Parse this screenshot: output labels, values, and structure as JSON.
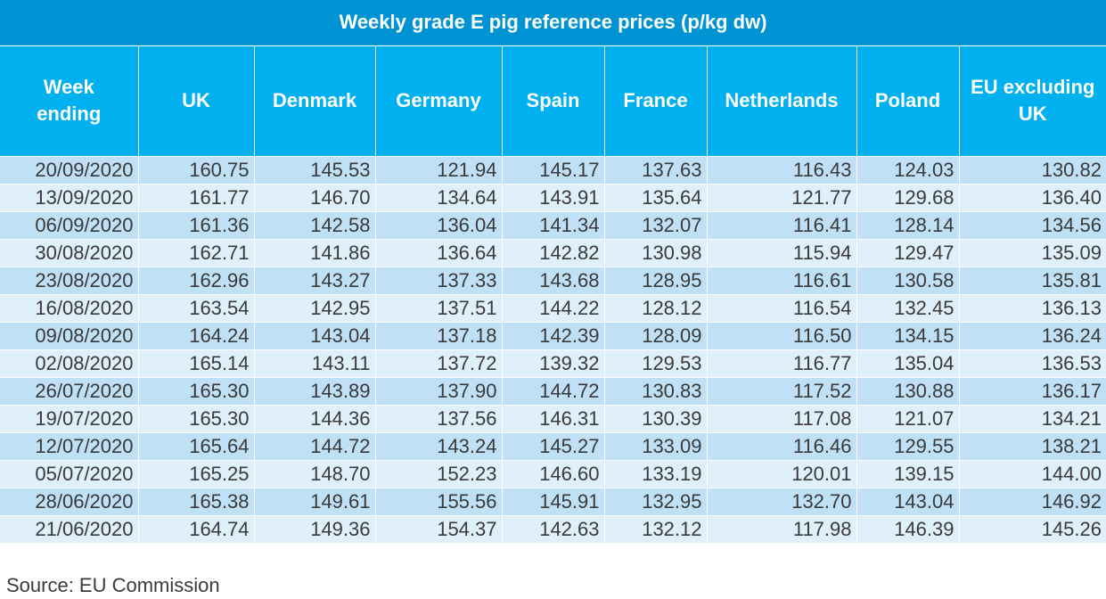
{
  "table": {
    "title": "Weekly grade E pig reference prices (p/kg dw)",
    "headers": [
      [
        "Week",
        "ending"
      ],
      [
        "UK"
      ],
      [
        "Denmark"
      ],
      [
        "Germany"
      ],
      [
        "Spain"
      ],
      [
        "France"
      ],
      [
        "Netherlands"
      ],
      [
        "Poland"
      ],
      [
        "EU excluding",
        "UK"
      ]
    ],
    "rows": [
      [
        "20/09/2020",
        "160.75",
        "145.53",
        "121.94",
        "145.17",
        "137.63",
        "116.43",
        "124.03",
        "130.82"
      ],
      [
        "13/09/2020",
        "161.77",
        "146.70",
        "134.64",
        "143.91",
        "135.64",
        "121.77",
        "129.68",
        "136.40"
      ],
      [
        "06/09/2020",
        "161.36",
        "142.58",
        "136.04",
        "141.34",
        "132.07",
        "116.41",
        "128.14",
        "134.56"
      ],
      [
        "30/08/2020",
        "162.71",
        "141.86",
        "136.64",
        "142.82",
        "130.98",
        "115.94",
        "129.47",
        "135.09"
      ],
      [
        "23/08/2020",
        "162.96",
        "143.27",
        "137.33",
        "143.68",
        "128.95",
        "116.61",
        "130.58",
        "135.81"
      ],
      [
        "16/08/2020",
        "163.54",
        "142.95",
        "137.51",
        "144.22",
        "128.12",
        "116.54",
        "132.45",
        "136.13"
      ],
      [
        "09/08/2020",
        "164.24",
        "143.04",
        "137.18",
        "142.39",
        "128.09",
        "116.50",
        "134.15",
        "136.24"
      ],
      [
        "02/08/2020",
        "165.14",
        "143.11",
        "137.72",
        "139.32",
        "129.53",
        "116.77",
        "135.04",
        "136.53"
      ],
      [
        "26/07/2020",
        "165.30",
        "143.89",
        "137.90",
        "144.72",
        "130.83",
        "117.52",
        "130.88",
        "136.17"
      ],
      [
        "19/07/2020",
        "165.30",
        "144.36",
        "137.56",
        "146.31",
        "130.39",
        "117.08",
        "121.07",
        "134.21"
      ],
      [
        "12/07/2020",
        "165.64",
        "144.72",
        "143.24",
        "145.27",
        "133.09",
        "116.46",
        "129.55",
        "138.21"
      ],
      [
        "05/07/2020",
        "165.25",
        "148.70",
        "152.23",
        "146.60",
        "133.19",
        "120.01",
        "139.15",
        "144.00"
      ],
      [
        "28/06/2020",
        "165.38",
        "149.61",
        "155.56",
        "145.91",
        "132.95",
        "132.70",
        "143.04",
        "146.92"
      ],
      [
        "21/06/2020",
        "164.74",
        "149.36",
        "154.37",
        "142.63",
        "132.12",
        "117.98",
        "146.39",
        "145.26"
      ]
    ]
  },
  "source": "Source: EU Commission",
  "colors": {
    "title_bg": "#0093d3",
    "header_bg": "#00b0ef",
    "row_dark": "#bfe0f5",
    "row_light": "#e0f0fb"
  }
}
